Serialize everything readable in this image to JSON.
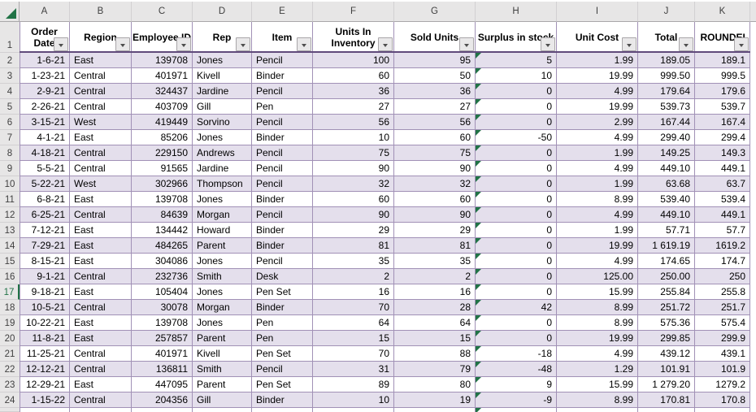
{
  "app": {
    "type": "spreadsheet-grid",
    "corner_icon": "select-all-icon",
    "active_row_number": "17"
  },
  "colors": {
    "accent_green": "#217346",
    "band_fill": "#e4dfec",
    "grid_border": "#a191b6",
    "header_underline": "#604a7b",
    "strip_background": "#e7e6e6"
  },
  "grid": {
    "column_letters": [
      "A",
      "B",
      "C",
      "D",
      "E",
      "F",
      "G",
      "H",
      "I",
      "J",
      "K"
    ],
    "header_row_number": "1"
  },
  "table": {
    "headers": [
      "Order Date",
      "Region",
      "Employee ID",
      "Rep",
      "Item",
      "Units In Inventory",
      "Sold Units",
      "Surplus in stock",
      "Unit Cost",
      "Total",
      "ROUNDED"
    ],
    "filter_icon": "filter-dropdown-icon",
    "error_icon": "error-indicator-icon",
    "rows": [
      {
        "r": "2",
        "date": "1-6-21",
        "region": "East",
        "id": "139708",
        "rep": "Jones",
        "item": "Pencil",
        "inv": "100",
        "sold": "95",
        "surplus": "5",
        "cost": "1.99",
        "total": "189.05",
        "round": "189.1"
      },
      {
        "r": "3",
        "date": "1-23-21",
        "region": "Central",
        "id": "401971",
        "rep": "Kivell",
        "item": "Binder",
        "inv": "60",
        "sold": "50",
        "surplus": "10",
        "cost": "19.99",
        "total": "999.50",
        "round": "999.5"
      },
      {
        "r": "4",
        "date": "2-9-21",
        "region": "Central",
        "id": "324437",
        "rep": "Jardine",
        "item": "Pencil",
        "inv": "36",
        "sold": "36",
        "surplus": "0",
        "cost": "4.99",
        "total": "179.64",
        "round": "179.6"
      },
      {
        "r": "5",
        "date": "2-26-21",
        "region": "Central",
        "id": "403709",
        "rep": "Gill",
        "item": "Pen",
        "inv": "27",
        "sold": "27",
        "surplus": "0",
        "cost": "19.99",
        "total": "539.73",
        "round": "539.7"
      },
      {
        "r": "6",
        "date": "3-15-21",
        "region": "West",
        "id": "419449",
        "rep": "Sorvino",
        "item": "Pencil",
        "inv": "56",
        "sold": "56",
        "surplus": "0",
        "cost": "2.99",
        "total": "167.44",
        "round": "167.4"
      },
      {
        "r": "7",
        "date": "4-1-21",
        "region": "East",
        "id": "85206",
        "rep": "Jones",
        "item": "Binder",
        "inv": "10",
        "sold": "60",
        "surplus": "-50",
        "cost": "4.99",
        "total": "299.40",
        "round": "299.4"
      },
      {
        "r": "8",
        "date": "4-18-21",
        "region": "Central",
        "id": "229150",
        "rep": "Andrews",
        "item": "Pencil",
        "inv": "75",
        "sold": "75",
        "surplus": "0",
        "cost": "1.99",
        "total": "149.25",
        "round": "149.3"
      },
      {
        "r": "9",
        "date": "5-5-21",
        "region": "Central",
        "id": "91565",
        "rep": "Jardine",
        "item": "Pencil",
        "inv": "90",
        "sold": "90",
        "surplus": "0",
        "cost": "4.99",
        "total": "449.10",
        "round": "449.1"
      },
      {
        "r": "10",
        "date": "5-22-21",
        "region": "West",
        "id": "302966",
        "rep": "Thompson",
        "item": "Pencil",
        "inv": "32",
        "sold": "32",
        "surplus": "0",
        "cost": "1.99",
        "total": "63.68",
        "round": "63.7"
      },
      {
        "r": "11",
        "date": "6-8-21",
        "region": "East",
        "id": "139708",
        "rep": "Jones",
        "item": "Binder",
        "inv": "60",
        "sold": "60",
        "surplus": "0",
        "cost": "8.99",
        "total": "539.40",
        "round": "539.4"
      },
      {
        "r": "12",
        "date": "6-25-21",
        "region": "Central",
        "id": "84639",
        "rep": "Morgan",
        "item": "Pencil",
        "inv": "90",
        "sold": "90",
        "surplus": "0",
        "cost": "4.99",
        "total": "449.10",
        "round": "449.1"
      },
      {
        "r": "13",
        "date": "7-12-21",
        "region": "East",
        "id": "134442",
        "rep": "Howard",
        "item": "Binder",
        "inv": "29",
        "sold": "29",
        "surplus": "0",
        "cost": "1.99",
        "total": "57.71",
        "round": "57.7"
      },
      {
        "r": "14",
        "date": "7-29-21",
        "region": "East",
        "id": "484265",
        "rep": "Parent",
        "item": "Binder",
        "inv": "81",
        "sold": "81",
        "surplus": "0",
        "cost": "19.99",
        "total": "1 619.19",
        "round": "1619.2"
      },
      {
        "r": "15",
        "date": "8-15-21",
        "region": "East",
        "id": "304086",
        "rep": "Jones",
        "item": "Pencil",
        "inv": "35",
        "sold": "35",
        "surplus": "0",
        "cost": "4.99",
        "total": "174.65",
        "round": "174.7"
      },
      {
        "r": "16",
        "date": "9-1-21",
        "region": "Central",
        "id": "232736",
        "rep": "Smith",
        "item": "Desk",
        "inv": "2",
        "sold": "2",
        "surplus": "0",
        "cost": "125.00",
        "total": "250.00",
        "round": "250"
      },
      {
        "r": "17",
        "date": "9-18-21",
        "region": "East",
        "id": "105404",
        "rep": "Jones",
        "item": "Pen Set",
        "inv": "16",
        "sold": "16",
        "surplus": "0",
        "cost": "15.99",
        "total": "255.84",
        "round": "255.8"
      },
      {
        "r": "18",
        "date": "10-5-21",
        "region": "Central",
        "id": "30078",
        "rep": "Morgan",
        "item": "Binder",
        "inv": "70",
        "sold": "28",
        "surplus": "42",
        "cost": "8.99",
        "total": "251.72",
        "round": "251.7"
      },
      {
        "r": "19",
        "date": "10-22-21",
        "region": "East",
        "id": "139708",
        "rep": "Jones",
        "item": "Pen",
        "inv": "64",
        "sold": "64",
        "surplus": "0",
        "cost": "8.99",
        "total": "575.36",
        "round": "575.4"
      },
      {
        "r": "20",
        "date": "11-8-21",
        "region": "East",
        "id": "257857",
        "rep": "Parent",
        "item": "Pen",
        "inv": "15",
        "sold": "15",
        "surplus": "0",
        "cost": "19.99",
        "total": "299.85",
        "round": "299.9"
      },
      {
        "r": "21",
        "date": "11-25-21",
        "region": "Central",
        "id": "401971",
        "rep": "Kivell",
        "item": "Pen Set",
        "inv": "70",
        "sold": "88",
        "surplus": "-18",
        "cost": "4.99",
        "total": "439.12",
        "round": "439.1"
      },
      {
        "r": "22",
        "date": "12-12-21",
        "region": "Central",
        "id": "136811",
        "rep": "Smith",
        "item": "Pencil",
        "inv": "31",
        "sold": "79",
        "surplus": "-48",
        "cost": "1.29",
        "total": "101.91",
        "round": "101.9"
      },
      {
        "r": "23",
        "date": "12-29-21",
        "region": "East",
        "id": "447095",
        "rep": "Parent",
        "item": "Pen Set",
        "inv": "89",
        "sold": "80",
        "surplus": "9",
        "cost": "15.99",
        "total": "1 279.20",
        "round": "1279.2"
      },
      {
        "r": "24",
        "date": "1-15-22",
        "region": "Central",
        "id": "204356",
        "rep": "Gill",
        "item": "Binder",
        "inv": "10",
        "sold": "19",
        "surplus": "-9",
        "cost": "8.99",
        "total": "170.81",
        "round": "170.8"
      }
    ]
  }
}
